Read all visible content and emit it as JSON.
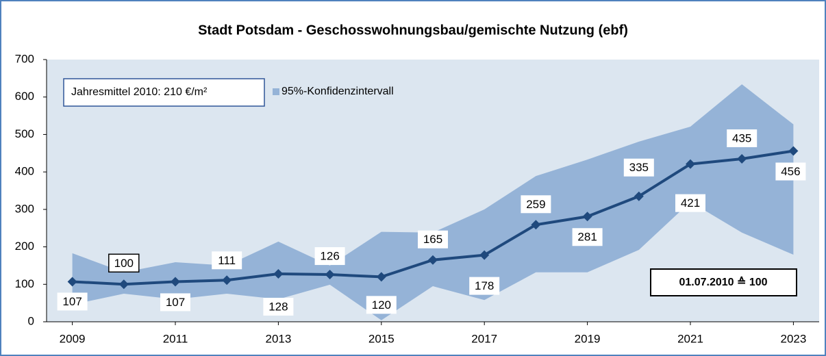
{
  "chart_data": {
    "type": "line",
    "title": "Stadt Potsdam - Geschosswohnungsbau/gemischte  Nutzung (ebf)",
    "x": [
      2009,
      2010,
      2011,
      2012,
      2013,
      2014,
      2015,
      2016,
      2017,
      2018,
      2019,
      2020,
      2021,
      2022,
      2023
    ],
    "values": [
      107,
      100,
      107,
      111,
      128,
      126,
      120,
      165,
      178,
      259,
      281,
      335,
      421,
      435,
      456
    ],
    "color": "#1f497d",
    "band": {
      "name": "95%-Konfidenzintervall",
      "color": "#95b3d7",
      "upper": [
        183,
        132,
        159,
        150,
        214,
        150,
        240,
        238,
        300,
        389,
        433,
        481,
        521,
        634,
        527
      ],
      "lower": [
        46,
        75,
        60,
        75,
        60,
        99,
        4,
        95,
        58,
        132,
        132,
        192,
        320,
        238,
        179
      ]
    },
    "annotations": [
      "Jahresmittel 2010: 210 €/m²",
      "01.07.2010 ≙ 100"
    ],
    "xlim": [
      2008.5,
      2023.5
    ],
    "xticks": [
      2009,
      2011,
      2013,
      2015,
      2017,
      2019,
      2021,
      2023
    ],
    "ylim": [
      0,
      700
    ],
    "yticks": [
      0,
      100,
      200,
      300,
      400,
      500,
      600,
      700
    ],
    "grid": false
  }
}
